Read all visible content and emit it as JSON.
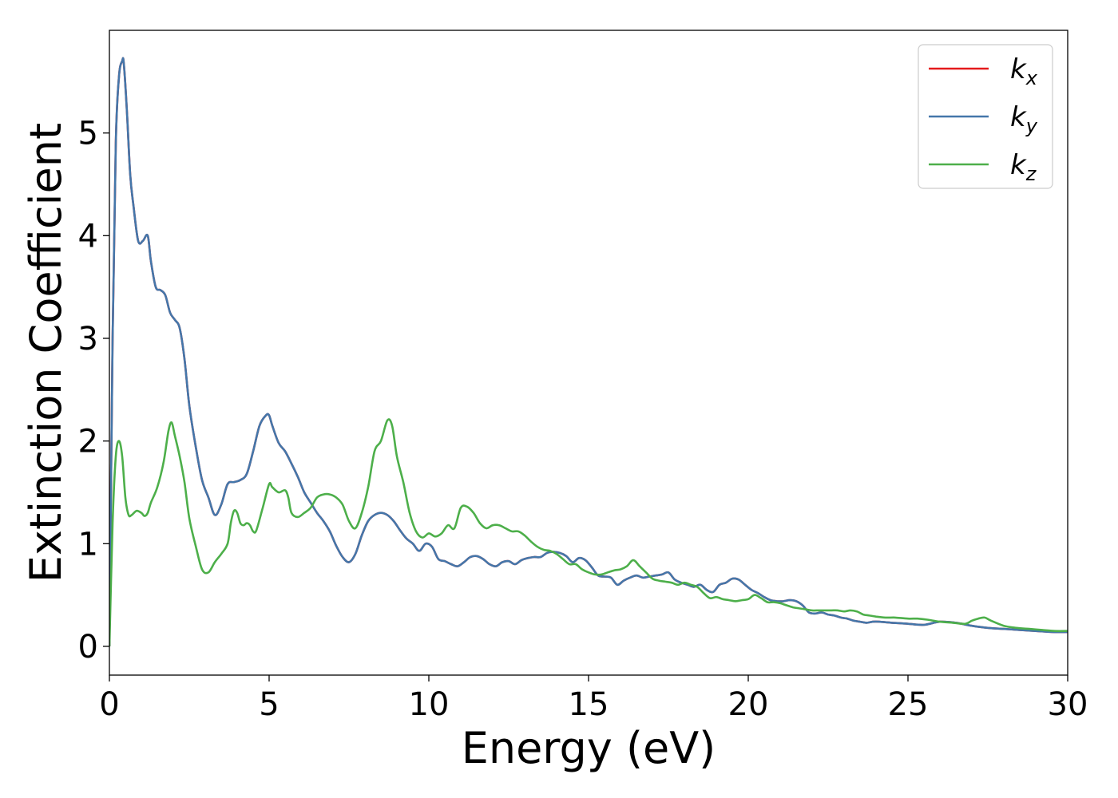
{
  "chart_data": {
    "type": "line",
    "xlabel": "Energy (eV)",
    "ylabel": "Extinction Coefficient",
    "xlim": [
      0,
      30
    ],
    "ylim": [
      -0.28,
      6.0
    ],
    "xticks": [
      "0",
      "5",
      "10",
      "15",
      "20",
      "25",
      "30"
    ],
    "yticks": [
      "0",
      "1",
      "2",
      "3",
      "4",
      "5"
    ],
    "grid": false,
    "legend_position": "top-right",
    "series": [
      {
        "name": "k_x",
        "legend_main": "k",
        "legend_sub": "x",
        "color": "#e41a1c",
        "x": [
          0,
          0.1,
          0.2,
          0.3,
          0.4,
          0.45,
          0.55,
          0.65,
          0.75,
          0.9,
          1.05,
          1.2,
          1.3,
          1.45,
          1.6,
          1.75,
          1.9,
          2.05,
          2.2,
          2.35,
          2.5,
          2.7,
          2.9,
          3.1,
          3.3,
          3.5,
          3.7,
          3.9,
          4.1,
          4.3,
          4.5,
          4.7,
          4.9,
          5.0,
          5.1,
          5.3,
          5.5,
          5.7,
          5.9,
          6.1,
          6.3,
          6.5,
          6.7,
          6.9,
          7.1,
          7.3,
          7.5,
          7.7,
          7.9,
          8.1,
          8.3,
          8.5,
          8.7,
          8.9,
          9.1,
          9.3,
          9.5,
          9.7,
          9.9,
          10.1,
          10.3,
          10.5,
          10.7,
          10.9,
          11.1,
          11.3,
          11.5,
          11.7,
          11.9,
          12.1,
          12.3,
          12.5,
          12.7,
          12.9,
          13.1,
          13.3,
          13.5,
          13.7,
          13.9,
          14.1,
          14.3,
          14.5,
          14.7,
          14.9,
          15.1,
          15.3,
          15.5,
          15.7,
          15.9,
          16.1,
          16.3,
          16.5,
          16.7,
          16.9,
          17.1,
          17.3,
          17.5,
          17.7,
          17.9,
          18.1,
          18.3,
          18.5,
          18.7,
          18.9,
          19.1,
          19.3,
          19.5,
          19.7,
          19.9,
          20.1,
          20.3,
          20.5,
          20.7,
          20.9,
          21.1,
          21.3,
          21.5,
          21.7,
          21.9,
          22.1,
          22.3,
          22.5,
          22.7,
          22.9,
          23.1,
          23.3,
          23.5,
          23.7,
          23.9,
          24.1,
          24.5,
          25.0,
          25.5,
          26.0,
          26.5,
          27.0,
          27.5,
          28.0,
          28.5,
          29.0,
          29.5,
          30.0
        ],
        "values": [
          0.0,
          3.0,
          4.9,
          5.55,
          5.7,
          5.68,
          5.2,
          4.6,
          4.3,
          3.95,
          3.95,
          4.0,
          3.75,
          3.5,
          3.47,
          3.42,
          3.25,
          3.18,
          3.1,
          2.8,
          2.35,
          1.95,
          1.62,
          1.45,
          1.28,
          1.38,
          1.58,
          1.6,
          1.62,
          1.68,
          1.9,
          2.15,
          2.25,
          2.25,
          2.15,
          1.98,
          1.9,
          1.78,
          1.65,
          1.5,
          1.4,
          1.3,
          1.22,
          1.12,
          0.98,
          0.87,
          0.82,
          0.9,
          1.08,
          1.22,
          1.28,
          1.3,
          1.28,
          1.22,
          1.13,
          1.05,
          1.0,
          0.93,
          1.0,
          0.97,
          0.85,
          0.83,
          0.8,
          0.78,
          0.82,
          0.87,
          0.88,
          0.85,
          0.8,
          0.78,
          0.82,
          0.83,
          0.8,
          0.84,
          0.86,
          0.87,
          0.87,
          0.91,
          0.92,
          0.91,
          0.88,
          0.82,
          0.86,
          0.84,
          0.77,
          0.69,
          0.68,
          0.67,
          0.6,
          0.64,
          0.67,
          0.69,
          0.67,
          0.68,
          0.69,
          0.7,
          0.72,
          0.65,
          0.62,
          0.6,
          0.58,
          0.6,
          0.55,
          0.53,
          0.6,
          0.62,
          0.66,
          0.65,
          0.6,
          0.55,
          0.52,
          0.48,
          0.45,
          0.44,
          0.44,
          0.45,
          0.44,
          0.4,
          0.33,
          0.32,
          0.33,
          0.31,
          0.3,
          0.28,
          0.27,
          0.25,
          0.24,
          0.23,
          0.24,
          0.24,
          0.23,
          0.22,
          0.21,
          0.24,
          0.23,
          0.2,
          0.18,
          0.17,
          0.16,
          0.15,
          0.14,
          0.14
        ]
      },
      {
        "name": "k_y",
        "legend_main": "k",
        "legend_sub": "y",
        "color": "#4477aa",
        "x": [
          0,
          0.1,
          0.2,
          0.3,
          0.4,
          0.45,
          0.55,
          0.65,
          0.75,
          0.9,
          1.05,
          1.2,
          1.3,
          1.45,
          1.6,
          1.75,
          1.9,
          2.05,
          2.2,
          2.35,
          2.5,
          2.7,
          2.9,
          3.1,
          3.3,
          3.5,
          3.7,
          3.9,
          4.1,
          4.3,
          4.5,
          4.7,
          4.9,
          5.0,
          5.1,
          5.3,
          5.5,
          5.7,
          5.9,
          6.1,
          6.3,
          6.5,
          6.7,
          6.9,
          7.1,
          7.3,
          7.5,
          7.7,
          7.9,
          8.1,
          8.3,
          8.5,
          8.7,
          8.9,
          9.1,
          9.3,
          9.5,
          9.7,
          9.9,
          10.1,
          10.3,
          10.5,
          10.7,
          10.9,
          11.1,
          11.3,
          11.5,
          11.7,
          11.9,
          12.1,
          12.3,
          12.5,
          12.7,
          12.9,
          13.1,
          13.3,
          13.5,
          13.7,
          13.9,
          14.1,
          14.3,
          14.5,
          14.7,
          14.9,
          15.1,
          15.3,
          15.5,
          15.7,
          15.9,
          16.1,
          16.3,
          16.5,
          16.7,
          16.9,
          17.1,
          17.3,
          17.5,
          17.7,
          17.9,
          18.1,
          18.3,
          18.5,
          18.7,
          18.9,
          19.1,
          19.3,
          19.5,
          19.7,
          19.9,
          20.1,
          20.3,
          20.5,
          20.7,
          20.9,
          21.1,
          21.3,
          21.5,
          21.7,
          21.9,
          22.1,
          22.3,
          22.5,
          22.7,
          22.9,
          23.1,
          23.3,
          23.5,
          23.7,
          23.9,
          24.1,
          24.5,
          25.0,
          25.5,
          26.0,
          26.5,
          27.0,
          27.5,
          28.0,
          28.5,
          29.0,
          29.5,
          30.0
        ],
        "values": [
          0.0,
          3.0,
          4.9,
          5.55,
          5.7,
          5.68,
          5.2,
          4.6,
          4.3,
          3.95,
          3.95,
          4.0,
          3.75,
          3.5,
          3.47,
          3.42,
          3.25,
          3.18,
          3.1,
          2.8,
          2.35,
          1.95,
          1.62,
          1.45,
          1.28,
          1.38,
          1.58,
          1.6,
          1.62,
          1.68,
          1.9,
          2.15,
          2.25,
          2.25,
          2.15,
          1.98,
          1.9,
          1.78,
          1.65,
          1.5,
          1.4,
          1.3,
          1.22,
          1.12,
          0.98,
          0.87,
          0.82,
          0.9,
          1.08,
          1.22,
          1.28,
          1.3,
          1.28,
          1.22,
          1.13,
          1.05,
          1.0,
          0.93,
          1.0,
          0.97,
          0.85,
          0.83,
          0.8,
          0.78,
          0.82,
          0.87,
          0.88,
          0.85,
          0.8,
          0.78,
          0.82,
          0.83,
          0.8,
          0.84,
          0.86,
          0.87,
          0.87,
          0.91,
          0.92,
          0.91,
          0.88,
          0.82,
          0.86,
          0.84,
          0.77,
          0.69,
          0.68,
          0.67,
          0.6,
          0.64,
          0.67,
          0.69,
          0.67,
          0.68,
          0.69,
          0.7,
          0.72,
          0.65,
          0.62,
          0.6,
          0.58,
          0.6,
          0.55,
          0.53,
          0.6,
          0.62,
          0.66,
          0.65,
          0.6,
          0.55,
          0.52,
          0.48,
          0.45,
          0.44,
          0.44,
          0.45,
          0.44,
          0.4,
          0.33,
          0.32,
          0.33,
          0.31,
          0.3,
          0.28,
          0.27,
          0.25,
          0.24,
          0.23,
          0.24,
          0.24,
          0.23,
          0.22,
          0.21,
          0.24,
          0.23,
          0.2,
          0.18,
          0.17,
          0.16,
          0.15,
          0.14,
          0.14
        ]
      },
      {
        "name": "k_z",
        "legend_main": "k",
        "legend_sub": "z",
        "color": "#4daf4a",
        "x": [
          0,
          0.1,
          0.2,
          0.3,
          0.4,
          0.5,
          0.6,
          0.7,
          0.85,
          1.0,
          1.1,
          1.2,
          1.3,
          1.5,
          1.7,
          1.85,
          1.95,
          2.05,
          2.2,
          2.35,
          2.5,
          2.7,
          2.9,
          3.1,
          3.3,
          3.5,
          3.7,
          3.8,
          3.9,
          4.0,
          4.1,
          4.2,
          4.3,
          4.4,
          4.5,
          4.6,
          4.8,
          5.0,
          5.1,
          5.3,
          5.5,
          5.6,
          5.7,
          5.9,
          6.1,
          6.3,
          6.5,
          6.7,
          6.9,
          7.1,
          7.3,
          7.5,
          7.7,
          7.9,
          8.1,
          8.3,
          8.5,
          8.7,
          8.85,
          9.0,
          9.2,
          9.4,
          9.6,
          9.8,
          10.0,
          10.2,
          10.4,
          10.6,
          10.8,
          11.0,
          11.2,
          11.4,
          11.6,
          11.8,
          12.0,
          12.2,
          12.4,
          12.6,
          12.8,
          13.0,
          13.2,
          13.4,
          13.6,
          13.8,
          14.0,
          14.2,
          14.4,
          14.6,
          14.8,
          15.0,
          15.2,
          15.4,
          15.6,
          15.8,
          16.0,
          16.2,
          16.4,
          16.6,
          16.8,
          17.0,
          17.2,
          17.4,
          17.6,
          17.8,
          18.0,
          18.2,
          18.4,
          18.6,
          18.8,
          19.0,
          19.2,
          19.4,
          19.6,
          19.8,
          20.0,
          20.2,
          20.4,
          20.6,
          20.8,
          21.0,
          21.2,
          21.4,
          21.6,
          21.8,
          22.0,
          22.2,
          22.4,
          22.6,
          22.8,
          23.0,
          23.2,
          23.4,
          23.6,
          23.8,
          24.0,
          24.3,
          24.6,
          25.0,
          25.3,
          25.6,
          26.0,
          26.4,
          26.8,
          27.0,
          27.2,
          27.4,
          27.6,
          28.0,
          28.4,
          28.8,
          29.2,
          29.6,
          30.0
        ],
        "values": [
          0.0,
          1.2,
          1.85,
          2.0,
          1.85,
          1.45,
          1.28,
          1.28,
          1.32,
          1.3,
          1.27,
          1.3,
          1.4,
          1.55,
          1.8,
          2.1,
          2.18,
          2.05,
          1.85,
          1.6,
          1.25,
          0.98,
          0.75,
          0.72,
          0.82,
          0.9,
          1.0,
          1.2,
          1.32,
          1.3,
          1.2,
          1.18,
          1.2,
          1.18,
          1.12,
          1.13,
          1.35,
          1.58,
          1.55,
          1.5,
          1.52,
          1.45,
          1.3,
          1.26,
          1.3,
          1.35,
          1.45,
          1.48,
          1.48,
          1.45,
          1.38,
          1.22,
          1.15,
          1.3,
          1.55,
          1.9,
          2.0,
          2.2,
          2.15,
          1.85,
          1.6,
          1.3,
          1.12,
          1.06,
          1.1,
          1.07,
          1.1,
          1.18,
          1.15,
          1.35,
          1.36,
          1.3,
          1.2,
          1.15,
          1.18,
          1.18,
          1.15,
          1.12,
          1.12,
          1.08,
          1.02,
          0.97,
          0.94,
          0.93,
          0.9,
          0.85,
          0.8,
          0.8,
          0.75,
          0.72,
          0.7,
          0.7,
          0.72,
          0.74,
          0.75,
          0.78,
          0.84,
          0.78,
          0.72,
          0.66,
          0.64,
          0.63,
          0.62,
          0.6,
          0.62,
          0.6,
          0.58,
          0.52,
          0.47,
          0.48,
          0.46,
          0.45,
          0.44,
          0.45,
          0.46,
          0.5,
          0.47,
          0.43,
          0.43,
          0.42,
          0.4,
          0.38,
          0.37,
          0.36,
          0.35,
          0.35,
          0.35,
          0.35,
          0.35,
          0.34,
          0.35,
          0.34,
          0.31,
          0.3,
          0.29,
          0.28,
          0.28,
          0.27,
          0.27,
          0.26,
          0.24,
          0.23,
          0.22,
          0.25,
          0.27,
          0.28,
          0.25,
          0.2,
          0.18,
          0.17,
          0.16,
          0.15,
          0.15
        ]
      }
    ]
  }
}
